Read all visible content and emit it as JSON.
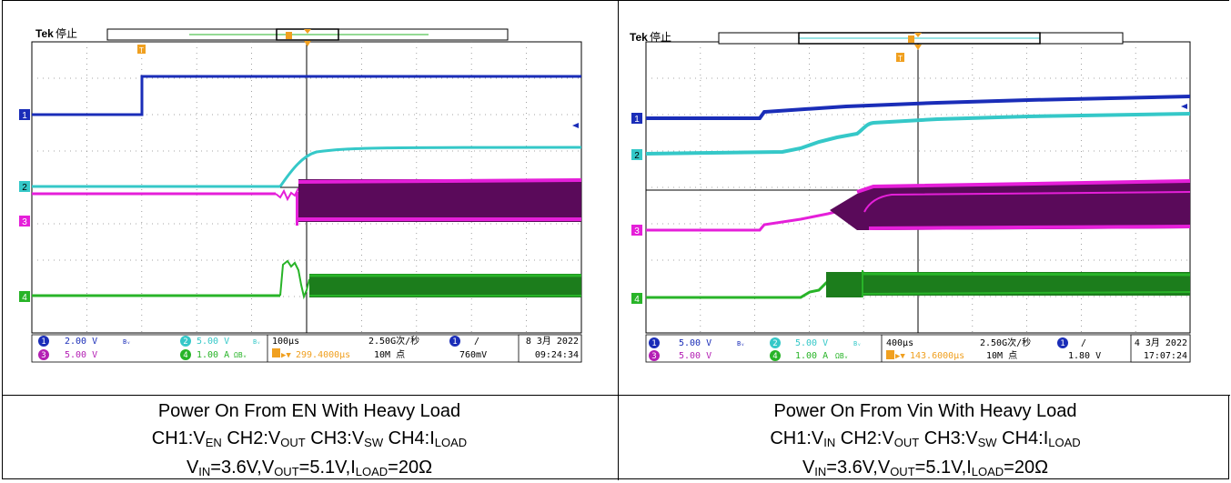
{
  "scopes": [
    {
      "brand": "Tek",
      "state": "停止",
      "trigger_marker": "T",
      "ch_markers": [
        "1",
        "2",
        "3",
        "4"
      ],
      "ch1": {
        "num": "1",
        "scale": "2.00 V",
        "coupling": "Bᵥ"
      },
      "ch2": {
        "num": "2",
        "scale": "5.00 V",
        "coupling": "Bᵥ"
      },
      "ch3": {
        "num": "3",
        "scale": "5.00 V"
      },
      "ch4": {
        "num": "4",
        "scale": "1.00 A",
        "coupling": "ΩBᵥ"
      },
      "timebase": "100µs",
      "trig_pos": "299.4000µs",
      "sample_rate": "2.50G次/秒",
      "record_length": "10M 点",
      "trig_ch": "1",
      "trig_slope": "/",
      "trig_level": "760mV",
      "date": "8 3月 2022",
      "time": "09:24:34",
      "colors": {
        "ch1": "#1a2db8",
        "ch2": "#35c8c8",
        "ch3": "#e51fd9",
        "ch4": "#28b428",
        "trigger": "#f0a020"
      }
    },
    {
      "brand": "Tek",
      "state": "停止",
      "trigger_marker": "T",
      "ch_markers": [
        "1",
        "2",
        "3",
        "4"
      ],
      "ch1": {
        "num": "1",
        "scale": "5.00 V",
        "coupling": "Bᵥ"
      },
      "ch2": {
        "num": "2",
        "scale": "5.00 V",
        "coupling": "Bᵥ"
      },
      "ch3": {
        "num": "3",
        "scale": "5.00 V"
      },
      "ch4": {
        "num": "4",
        "scale": "1.00 A",
        "coupling": "ΩBᵥ"
      },
      "timebase": "400µs",
      "trig_pos": "143.6000µs",
      "sample_rate": "2.50G次/秒",
      "record_length": "10M 点",
      "trig_ch": "1",
      "trig_slope": "/",
      "trig_level": "1.80 V",
      "date": "4 3月 2022",
      "time": "17:07:24",
      "colors": {
        "ch1": "#1a2db8",
        "ch2": "#35c8c8",
        "ch3": "#e51fd9",
        "ch4": "#28b428",
        "trigger": "#f0a020"
      }
    }
  ],
  "captions": [
    {
      "title": "Power On From EN With Heavy Load",
      "ch1_label": "CH1:V",
      "ch1_sub": "EN",
      "ch2_label": "CH2:V",
      "ch2_sub": "OUT",
      "ch3_label": "CH3:V",
      "ch3_sub": "SW",
      "ch4_label": "CH4:I",
      "ch4_sub": "LOAD",
      "cond_vin": "V",
      "cond_vin_sub": "IN",
      "cond_vin_val": "=3.6V,",
      "cond_vout": "V",
      "cond_vout_sub": "OUT",
      "cond_vout_val": "=5.1V,",
      "cond_iload": "I",
      "cond_iload_sub": "LOAD",
      "cond_iload_val": "=20Ω"
    },
    {
      "title": "Power On From Vin With Heavy Load",
      "ch1_label": "CH1:V",
      "ch1_sub": "IN",
      "ch2_label": "CH2:V",
      "ch2_sub": "OUT",
      "ch3_label": "CH3:V",
      "ch3_sub": "SW",
      "ch4_label": "CH4:I",
      "ch4_sub": "LOAD",
      "cond_vin": "V",
      "cond_vin_sub": "IN",
      "cond_vin_val": "=3.6V,",
      "cond_vout": "V",
      "cond_vout_sub": "OUT",
      "cond_vout_val": "=5.1V,",
      "cond_iload": "I",
      "cond_iload_sub": "LOAD",
      "cond_iload_val": "=20Ω"
    }
  ]
}
